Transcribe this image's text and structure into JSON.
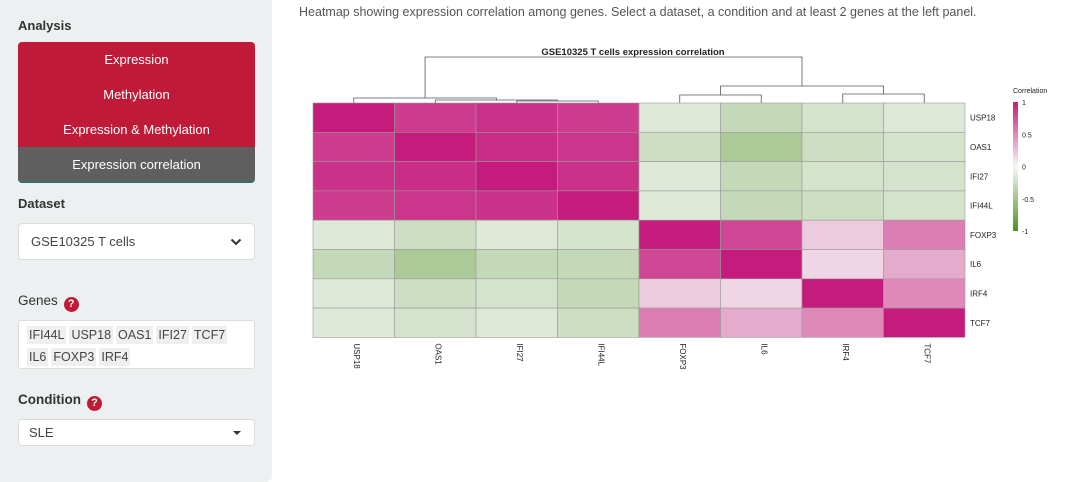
{
  "sidebar": {
    "analysis_title": "Analysis",
    "nav": [
      {
        "label": "Expression"
      },
      {
        "label": "Methylation"
      },
      {
        "label": "Expression & Methylation"
      },
      {
        "label": "Expression correlation"
      }
    ],
    "dataset_label": "Dataset",
    "dataset_value": "GSE10325 T cells",
    "genes_label": "Genes",
    "genes": [
      "IFI44L",
      "USP18",
      "OAS1",
      "IFI27",
      "TCF7",
      "IL6",
      "FOXP3",
      "IRF4"
    ],
    "condition_label": "Condition",
    "condition_value": "SLE",
    "help_glyph": "?"
  },
  "description": "Heatmap showing expression correlation among genes. Select a dataset, a condition and at least 2 genes at the left panel.",
  "colors": {
    "accent": "#bf1a37",
    "active": "#5f5f5f",
    "high": "#c51b7d",
    "low": "#4d9221"
  },
  "chart_data": {
    "type": "heatmap",
    "title": "GSE10325 T cells expression correlation",
    "columns": [
      "USP18",
      "OAS1",
      "IFI27",
      "IFI44L",
      "FOXP3",
      "IL6",
      "IRF4",
      "TCF7"
    ],
    "rows": [
      "USP18",
      "OAS1",
      "IFI27",
      "IFI44L",
      "FOXP3",
      "IL6",
      "IRF4",
      "TCF7"
    ],
    "values": [
      [
        1.0,
        0.85,
        0.9,
        0.85,
        -0.15,
        -0.3,
        -0.2,
        -0.15
      ],
      [
        0.85,
        1.0,
        0.92,
        0.88,
        -0.25,
        -0.45,
        -0.25,
        -0.2
      ],
      [
        0.9,
        0.92,
        1.0,
        0.9,
        -0.15,
        -0.3,
        -0.2,
        -0.2
      ],
      [
        0.85,
        0.88,
        0.9,
        1.0,
        -0.15,
        -0.3,
        -0.25,
        -0.2
      ],
      [
        -0.15,
        -0.25,
        -0.15,
        -0.2,
        1.0,
        0.8,
        0.2,
        0.55
      ],
      [
        -0.3,
        -0.45,
        -0.3,
        -0.3,
        0.8,
        1.0,
        0.15,
        0.35
      ],
      [
        -0.15,
        -0.25,
        -0.2,
        -0.3,
        0.2,
        0.15,
        1.0,
        0.5
      ],
      [
        -0.15,
        -0.2,
        -0.15,
        -0.25,
        0.55,
        0.35,
        0.5,
        1.0
      ]
    ],
    "legend": {
      "title": "Correlation",
      "ticks": [
        1,
        0.5,
        0,
        -0.5,
        -1
      ]
    },
    "colorscale": [
      "#4d9221",
      "#f7f7f7",
      "#c51b7d"
    ],
    "range": [
      -1,
      1
    ]
  }
}
